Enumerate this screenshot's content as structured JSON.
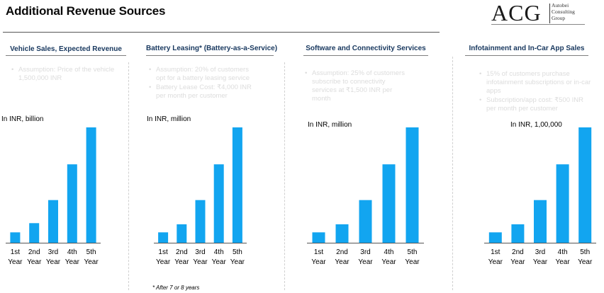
{
  "page": {
    "title": "Additional Revenue Sources"
  },
  "logo": {
    "main": "ACG",
    "line1": "Autobei",
    "line2": "Consulting",
    "line3": "Group"
  },
  "colors": {
    "bar": "#12a5f0",
    "heading": "#17375e"
  },
  "sections": [
    {
      "heading": "Vehicle Sales, Expected Revenue",
      "bullets": [
        "Assumption: Price of the vehicle 1,500,000 INR"
      ],
      "unit": "In INR, billion"
    },
    {
      "heading": "Battery Leasing* (Battery-as-a-Service)",
      "bullets": [
        "Assumption: 20% of customers opt for a battery leasing service",
        "Battery Lease Cost: ₹4,000 INR per month per customer"
      ],
      "unit": "In INR, million"
    },
    {
      "heading": "Software and Connectivity Services",
      "bullets": [
        "Assumption: 25% of customers subscribe to connectivity services at ₹1,500 INR per month"
      ],
      "unit": "In INR, million"
    },
    {
      "heading": "Infotainment and In-Car App Sales",
      "bullets": [
        "15% of customers purchase infotainment subscriptions or in-car apps",
        "Subscription/app cost: ₹500 INR per month per customer"
      ],
      "unit": "In INR, 1,00,000"
    }
  ],
  "chart_data": [
    {
      "type": "bar",
      "title": "Vehicle Sales, Expected Revenue",
      "ylabel": "In INR, billion",
      "categories": [
        "1st Year",
        "2nd Year",
        "3rd Year",
        "4th Year",
        "5th Year"
      ],
      "values": [
        9,
        17,
        37,
        68,
        100
      ],
      "ylim": [
        0,
        100
      ]
    },
    {
      "type": "bar",
      "title": "Battery Leasing* (Battery-as-a-Service)",
      "ylabel": "In INR, million",
      "categories": [
        "1st Year",
        "2nd Year",
        "3rd Year",
        "4th Year",
        "5th Year"
      ],
      "values": [
        9,
        16,
        37,
        68,
        100
      ],
      "ylim": [
        0,
        100
      ]
    },
    {
      "type": "bar",
      "title": "Software and Connectivity Services",
      "ylabel": "In INR, million",
      "categories": [
        "1st Year",
        "2nd Year",
        "3rd Year",
        "4th Year",
        "5th Year"
      ],
      "values": [
        9,
        16,
        37,
        68,
        100
      ],
      "ylim": [
        0,
        100
      ]
    },
    {
      "type": "bar",
      "title": "Infotainment and In-Car App Sales",
      "ylabel": "In INR, 1,00,000",
      "categories": [
        "1st Year",
        "2nd Year",
        "3rd Year",
        "4th Year",
        "5th Year"
      ],
      "values": [
        9,
        16,
        37,
        68,
        100
      ],
      "ylim": [
        0,
        100
      ]
    }
  ],
  "footnote": "* After 7 or 8 years"
}
